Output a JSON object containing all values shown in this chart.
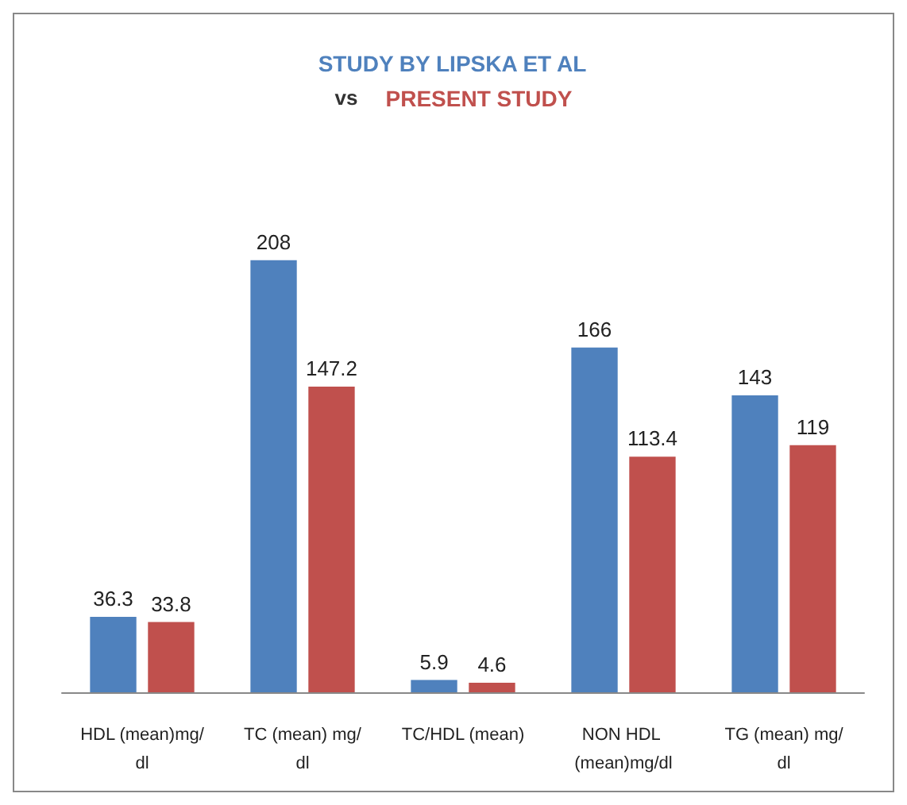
{
  "chart_data": {
    "type": "bar",
    "categories": [
      "HDL (mean)mg/dl",
      "TC (mean) mg/dl",
      "TC/HDL (mean)",
      "NON HDL (mean)mg/dl",
      "TG (mean) mg/dl"
    ],
    "series": [
      {
        "name": "STUDY BY LIPSKA ET AL",
        "color": "#4f81bd",
        "values": [
          36.3,
          208,
          5.9,
          166,
          143
        ]
      },
      {
        "name": "PRESENT STUDY",
        "color": "#c0504d",
        "values": [
          33.8,
          147.2,
          4.6,
          113.4,
          119
        ]
      }
    ],
    "annotations": [
      "vs"
    ],
    "data_labels": true,
    "legend": "top"
  }
}
